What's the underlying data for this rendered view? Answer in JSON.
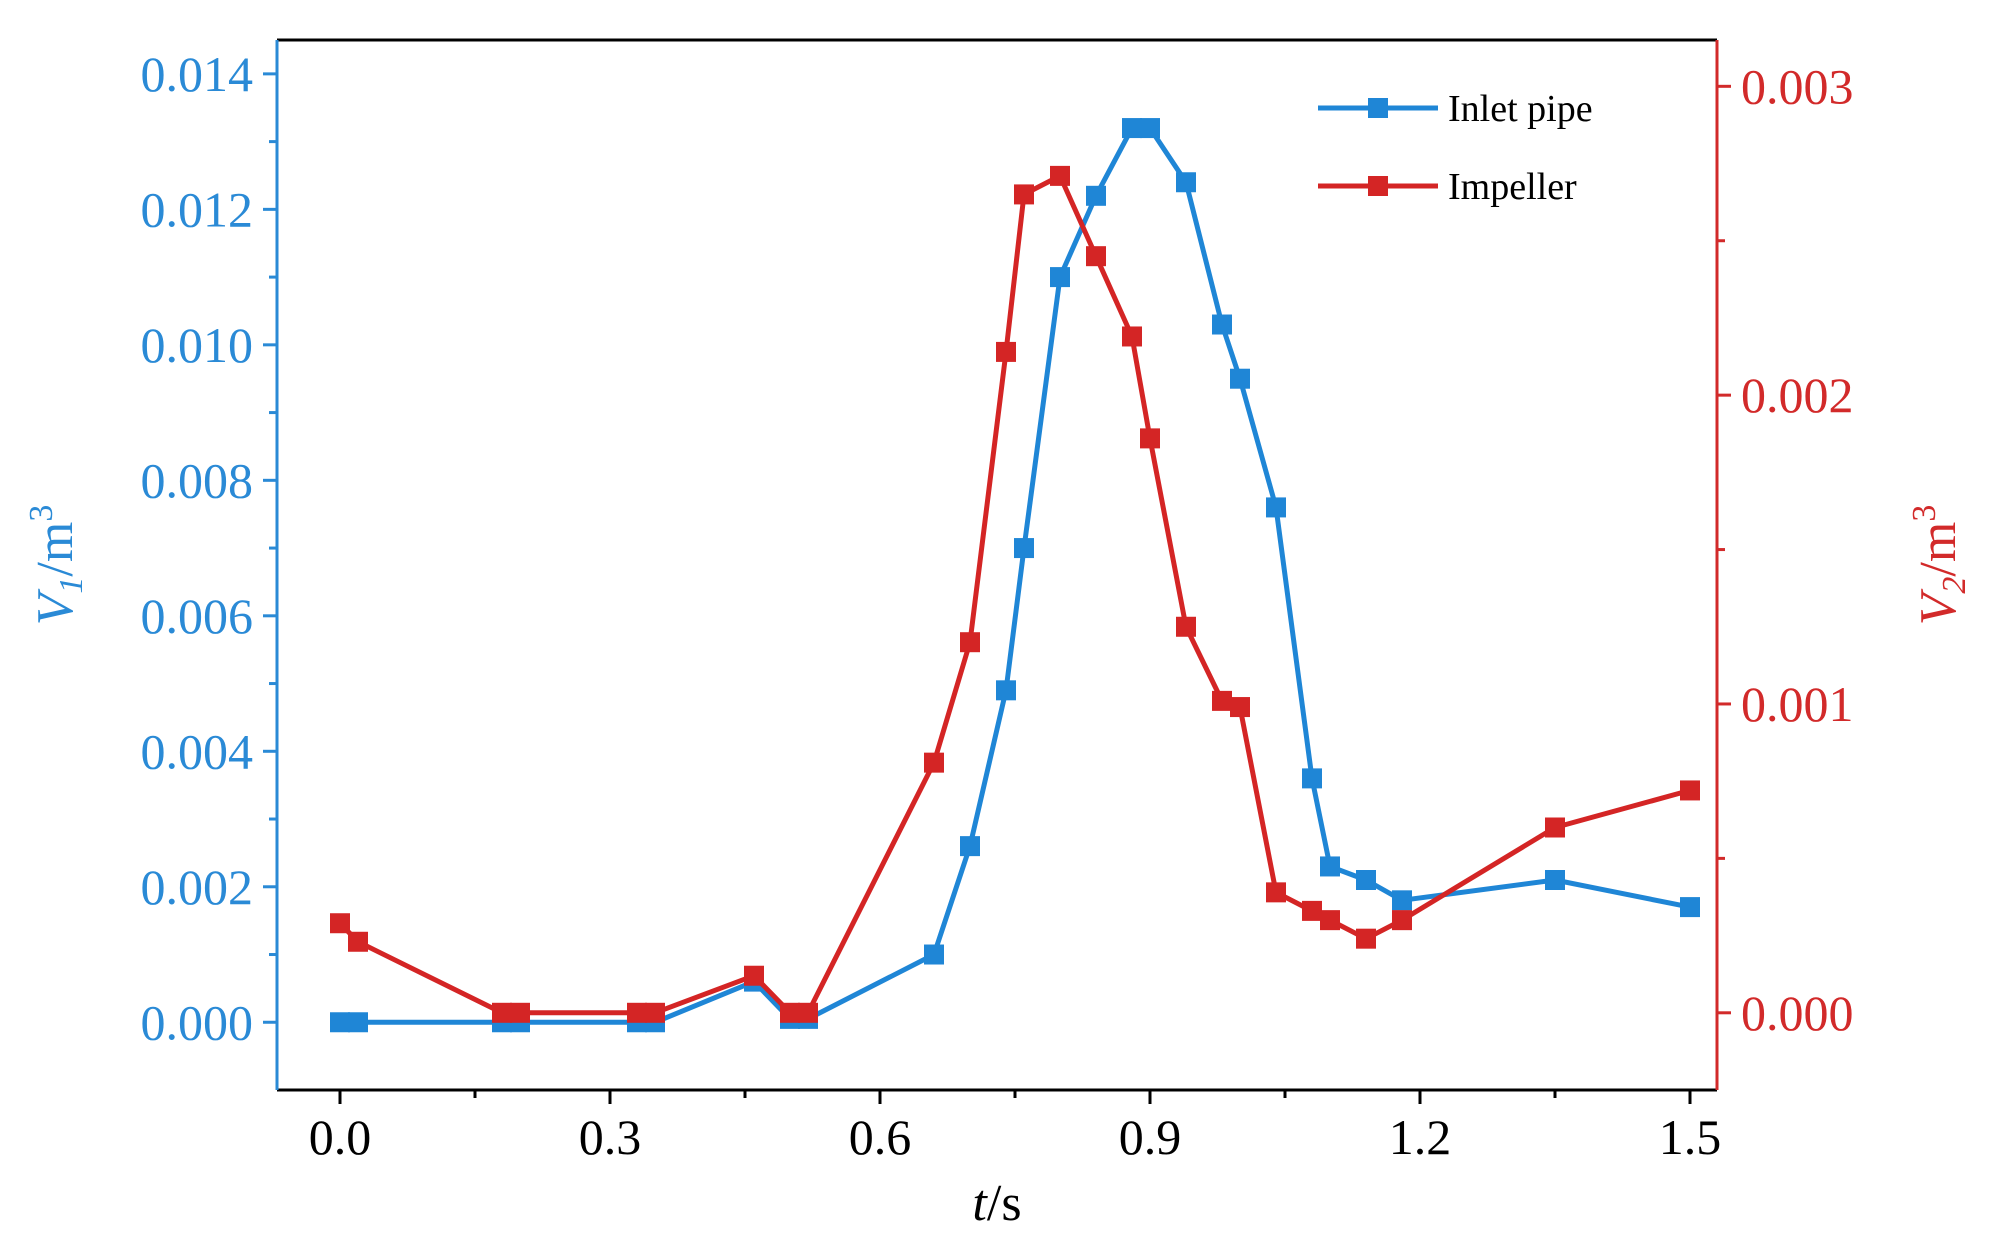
{
  "chart_data": {
    "type": "line",
    "title": "",
    "xlabel": {
      "italic": "t",
      "rest": "/s"
    },
    "ylabel_left": {
      "italic": "V",
      "sub": "1",
      "rest": "/m",
      "sup": "3"
    },
    "ylabel_right": {
      "italic": "V",
      "sub": "2",
      "rest": "/m",
      "sup": "3"
    },
    "xlim": [
      -0.07,
      1.53
    ],
    "ylim_left": [
      -0.001,
      0.0145
    ],
    "ylim_right": [
      -0.00025,
      0.00315
    ],
    "x_ticks": [
      0.0,
      0.3,
      0.6,
      0.9,
      1.2,
      1.5
    ],
    "x_tick_labels": [
      "0.0",
      "0.3",
      "0.6",
      "0.9",
      "1.2",
      "1.5"
    ],
    "y_left_ticks": [
      0.0,
      0.002,
      0.004,
      0.006,
      0.008,
      0.01,
      0.012,
      0.014
    ],
    "y_left_tick_labels": [
      "0.000",
      "0.002",
      "0.004",
      "0.006",
      "0.008",
      "0.010",
      "0.012",
      "0.014"
    ],
    "y_right_ticks": [
      0.0,
      0.001,
      0.002,
      0.003
    ],
    "y_right_tick_labels": [
      "0.000",
      "0.001",
      "0.002",
      "0.003"
    ],
    "colors": {
      "left_axis": "#2a8ad6",
      "right_axis": "#d22a2a",
      "inlet": "#1f86d6",
      "impeller": "#d42525"
    },
    "legend_position": "top-right",
    "series": [
      {
        "name": "Inlet pipe",
        "axis": "left",
        "color": "#1f86d6",
        "x": [
          0.0,
          0.02,
          0.18,
          0.2,
          0.33,
          0.35,
          0.46,
          0.5,
          0.52,
          0.66,
          0.7,
          0.74,
          0.76,
          0.8,
          0.84,
          0.88,
          0.9,
          0.94,
          0.98,
          1.0,
          1.04,
          1.08,
          1.1,
          1.14,
          1.18,
          1.35,
          1.5
        ],
        "values": [
          0.0,
          0.0,
          0.0,
          0.0,
          0.0,
          0.0,
          0.0006,
          5e-05,
          5e-05,
          0.001,
          0.0026,
          0.0049,
          0.007,
          0.011,
          0.0122,
          0.0132,
          0.0132,
          0.0124,
          0.0103,
          0.0095,
          0.0076,
          0.0036,
          0.0023,
          0.0021,
          0.0018,
          0.0021,
          0.0017
        ]
      },
      {
        "name": "Impeller",
        "axis": "right",
        "color": "#d42525",
        "x": [
          0.0,
          0.02,
          0.18,
          0.2,
          0.33,
          0.35,
          0.46,
          0.5,
          0.52,
          0.66,
          0.7,
          0.74,
          0.76,
          0.8,
          0.84,
          0.88,
          0.9,
          0.94,
          0.98,
          1.0,
          1.04,
          1.08,
          1.1,
          1.14,
          1.18,
          1.35,
          1.5
        ],
        "values": [
          0.00029,
          0.00023,
          0.0,
          0.0,
          0.0,
          0.0,
          0.00012,
          0.0,
          0.0,
          0.00081,
          0.0012,
          0.00214,
          0.00265,
          0.00271,
          0.00245,
          0.00219,
          0.00186,
          0.00125,
          0.00101,
          0.00099,
          0.00039,
          0.00033,
          0.0003,
          0.00024,
          0.0003,
          0.0006,
          0.00072
        ]
      }
    ]
  }
}
